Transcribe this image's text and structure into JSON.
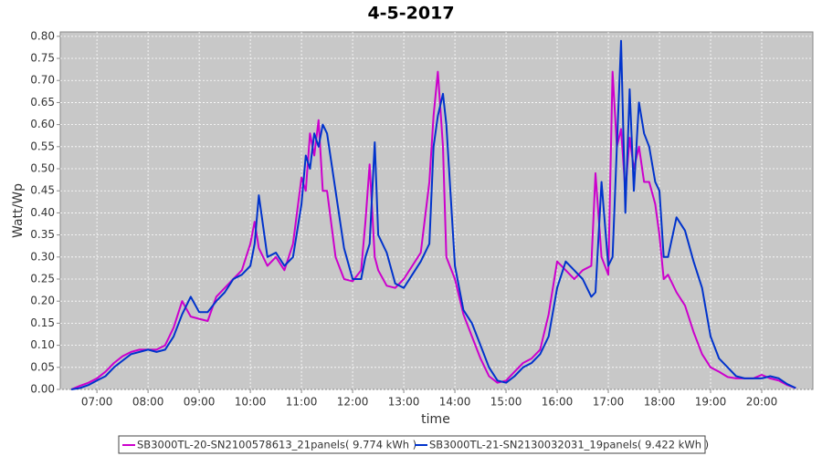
{
  "chart_data": {
    "type": "line",
    "title": "4-5-2017",
    "xlabel": "time",
    "ylabel": "Watt/Wp",
    "grid": true,
    "legend": "bottom",
    "xlim": [
      "06:17",
      "21:00"
    ],
    "xticks": [
      "07:00",
      "08:00",
      "09:00",
      "10:00",
      "11:00",
      "12:00",
      "13:00",
      "14:00",
      "15:00",
      "16:00",
      "17:00",
      "18:00",
      "19:00",
      "20:00"
    ],
    "ylim": [
      0,
      0.81
    ],
    "yticks": [
      {
        "value": 0,
        "label": "0.00"
      },
      0.05,
      {
        "value": 0.1,
        "label": "0.10"
      },
      0.15,
      {
        "value": 0.2,
        "label": "0.20"
      },
      0.25,
      {
        "value": 0.3,
        "label": "0.30"
      },
      0.35,
      {
        "value": 0.4,
        "label": "0.40"
      },
      0.45,
      {
        "value": 0.5,
        "label": "0.50"
      },
      0.55,
      {
        "value": 0.6,
        "label": "0.60"
      },
      0.65,
      {
        "value": 0.7,
        "label": "0.70"
      },
      0.75,
      {
        "value": 0.8,
        "label": "0.80"
      }
    ],
    "x": [
      "06:30",
      "06:40",
      "06:50",
      "07:00",
      "07:10",
      "07:20",
      "07:30",
      "07:40",
      "07:50",
      "08:00",
      "08:10",
      "08:20",
      "08:30",
      "08:40",
      "08:50",
      "09:00",
      "09:10",
      "09:20",
      "09:30",
      "09:40",
      "09:50",
      "10:00",
      "10:05",
      "10:10",
      "10:20",
      "10:30",
      "10:40",
      "10:50",
      "11:00",
      "11:05",
      "11:10",
      "11:15",
      "11:20",
      "11:25",
      "11:30",
      "11:40",
      "11:50",
      "12:00",
      "12:10",
      "12:15",
      "12:20",
      "12:26",
      "12:30",
      "12:40",
      "12:50",
      "13:00",
      "13:10",
      "13:20",
      "13:30",
      "13:35",
      "13:40",
      "13:46",
      "13:50",
      "14:00",
      "14:10",
      "14:20",
      "14:30",
      "14:40",
      "14:50",
      "15:00",
      "15:10",
      "15:20",
      "15:30",
      "15:40",
      "15:50",
      "16:00",
      "16:10",
      "16:20",
      "16:30",
      "16:40",
      "16:45",
      "16:52",
      "17:00",
      "17:05",
      "17:10",
      "17:15",
      "17:20",
      "17:25",
      "17:30",
      "17:36",
      "17:42",
      "17:48",
      "17:55",
      "18:00",
      "18:05",
      "18:10",
      "18:20",
      "18:30",
      "18:40",
      "18:50",
      "19:00",
      "19:10",
      "19:20",
      "19:30",
      "19:40",
      "19:50",
      "20:00",
      "20:10",
      "20:20",
      "20:30",
      "20:40"
    ],
    "series": [
      {
        "name": "SB3000TL-20-SN2100578613_21panels( 9.774 kWh )",
        "color": "#cc00cc",
        "values": [
          0,
          0.008,
          0.015,
          0.025,
          0.04,
          0.06,
          0.075,
          0.085,
          0.09,
          0.09,
          0.09,
          0.1,
          0.14,
          0.2,
          0.165,
          0.16,
          0.155,
          0.21,
          0.23,
          0.25,
          0.27,
          0.33,
          0.38,
          0.32,
          0.28,
          0.3,
          0.27,
          0.33,
          0.48,
          0.45,
          0.58,
          0.53,
          0.61,
          0.45,
          0.45,
          0.3,
          0.25,
          0.245,
          0.27,
          0.38,
          0.51,
          0.3,
          0.27,
          0.235,
          0.23,
          0.25,
          0.28,
          0.31,
          0.47,
          0.62,
          0.72,
          0.55,
          0.3,
          0.25,
          0.17,
          0.12,
          0.07,
          0.03,
          0.015,
          0.02,
          0.04,
          0.06,
          0.07,
          0.09,
          0.17,
          0.29,
          0.27,
          0.25,
          0.27,
          0.28,
          0.49,
          0.3,
          0.26,
          0.72,
          0.55,
          0.59,
          0.45,
          0.57,
          0.5,
          0.55,
          0.47,
          0.47,
          0.42,
          0.35,
          0.25,
          0.26,
          0.22,
          0.19,
          0.13,
          0.08,
          0.05,
          0.04,
          0.028,
          0.025,
          0.025,
          0.025,
          0.033,
          0.025,
          0.02,
          0.01,
          0.003
        ]
      },
      {
        "name": "SB3000TL-21-SN2130032031_19panels( 9.422 kWh )",
        "color": "#0033cc",
        "values": [
          0,
          0.003,
          0.01,
          0.02,
          0.03,
          0.05,
          0.065,
          0.08,
          0.085,
          0.09,
          0.085,
          0.09,
          0.12,
          0.17,
          0.21,
          0.175,
          0.175,
          0.2,
          0.22,
          0.25,
          0.26,
          0.28,
          0.33,
          0.44,
          0.3,
          0.31,
          0.28,
          0.3,
          0.42,
          0.53,
          0.5,
          0.58,
          0.55,
          0.6,
          0.58,
          0.45,
          0.32,
          0.25,
          0.25,
          0.3,
          0.33,
          0.56,
          0.35,
          0.31,
          0.24,
          0.23,
          0.26,
          0.29,
          0.33,
          0.55,
          0.62,
          0.67,
          0.6,
          0.28,
          0.18,
          0.15,
          0.1,
          0.05,
          0.02,
          0.015,
          0.03,
          0.05,
          0.06,
          0.08,
          0.12,
          0.23,
          0.29,
          0.27,
          0.25,
          0.21,
          0.22,
          0.47,
          0.28,
          0.3,
          0.55,
          0.79,
          0.4,
          0.68,
          0.45,
          0.65,
          0.58,
          0.55,
          0.47,
          0.45,
          0.3,
          0.3,
          0.39,
          0.36,
          0.29,
          0.23,
          0.12,
          0.07,
          0.05,
          0.03,
          0.025,
          0.025,
          0.025,
          0.03,
          0.025,
          0.012,
          0.003
        ]
      }
    ]
  }
}
